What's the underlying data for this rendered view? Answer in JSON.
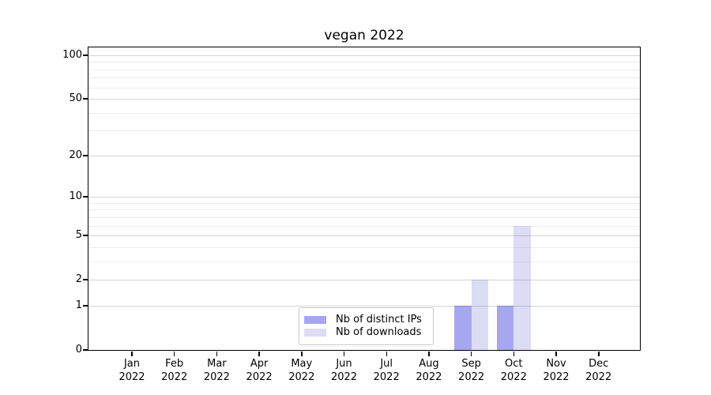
{
  "title": "vegan 2022",
  "chart_data": {
    "type": "bar",
    "title": "vegan 2022",
    "categories": [
      "Jan 2022",
      "Feb 2022",
      "Mar 2022",
      "Apr 2022",
      "May 2022",
      "Jun 2022",
      "Jul 2022",
      "Aug 2022",
      "Sep 2022",
      "Oct 2022",
      "Nov 2022",
      "Dec 2022"
    ],
    "series": [
      {
        "name": "Nb of distinct IPs",
        "color": "#a7a7f0",
        "values": [
          0,
          0,
          0,
          0,
          0,
          0,
          0,
          0,
          1,
          1,
          0,
          0
        ]
      },
      {
        "name": "Nb of downloads",
        "color": "#dcdcf5",
        "values": [
          0,
          0,
          0,
          0,
          0,
          0,
          0,
          0,
          2,
          6,
          0,
          0
        ]
      }
    ],
    "xlabel": "",
    "ylabel": "",
    "yscale": "log1p",
    "ylim": [
      0,
      113
    ],
    "y_major_ticks": [
      0,
      1,
      2,
      5,
      10,
      20,
      50,
      100
    ],
    "y_minor_ticks": [
      3,
      4,
      6,
      7,
      8,
      9,
      30,
      40,
      60,
      70,
      80,
      90
    ],
    "grid": "horizontal major+minor gridlines drawn over bars",
    "legend_position": "lower center inside axes",
    "colors": {
      "grid_major": "rgba(0,0,0,0.17)",
      "grid_minor": "rgba(0,0,0,0.065)",
      "spine": "#000000",
      "background": "#ffffff",
      "text": "#000000"
    }
  }
}
